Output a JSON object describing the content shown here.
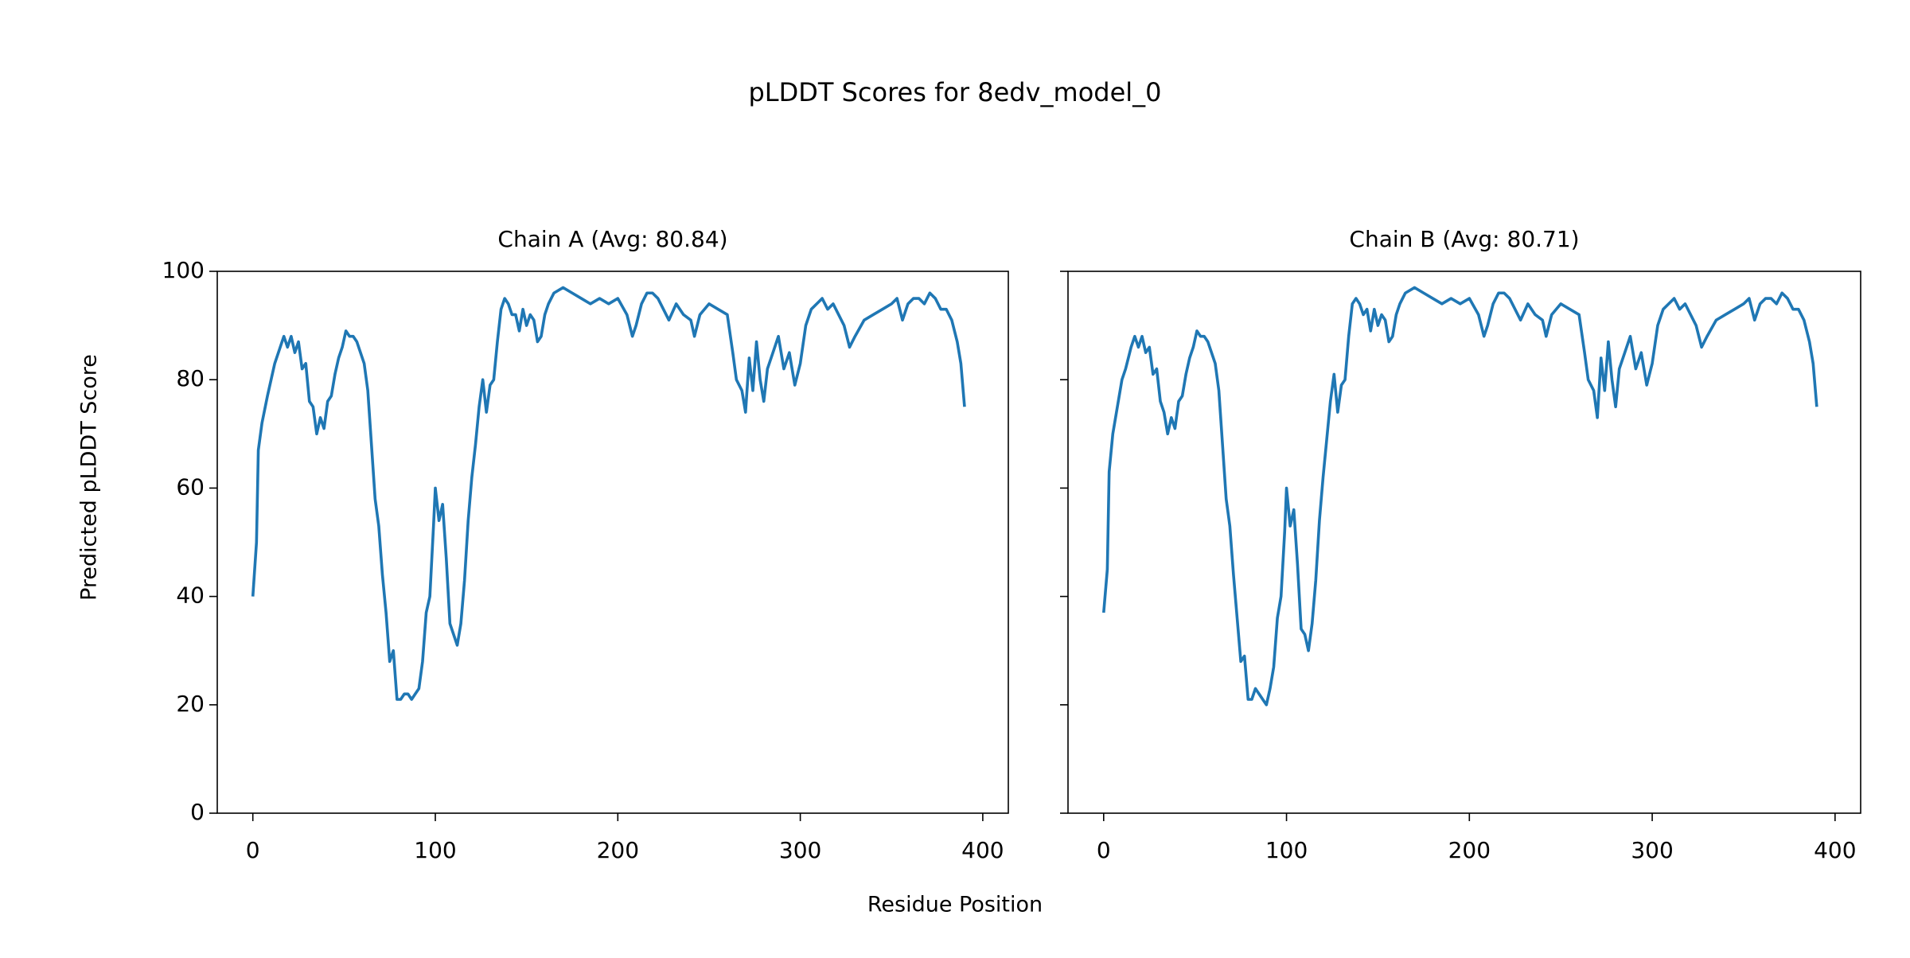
{
  "figure": {
    "title": "pLDDT Scores for 8edv_model_0",
    "x_label": "Residue Position",
    "y_label": "Predicted pLDDT Score"
  },
  "chart_data": [
    {
      "type": "line",
      "title": "Chain A (Avg: 80.84)",
      "color": "#1f77b4",
      "xlim": [
        -19.5,
        414
      ],
      "xticks": [
        0,
        100,
        200,
        300,
        400
      ],
      "ylim": [
        0,
        100
      ],
      "yticks": [
        0,
        20,
        40,
        60,
        80,
        100
      ],
      "show_ytick_labels": true,
      "x": [
        0,
        2,
        3,
        5,
        8,
        10,
        12,
        15,
        17,
        19,
        21,
        23,
        25,
        27,
        29,
        31,
        33,
        35,
        37,
        39,
        41,
        43,
        45,
        47,
        49,
        51,
        53,
        55,
        57,
        59,
        61,
        63,
        65,
        67,
        69,
        71,
        73,
        75,
        77,
        79,
        81,
        83,
        85,
        87,
        89,
        91,
        93,
        95,
        97,
        99,
        100,
        102,
        104,
        106,
        108,
        110,
        112,
        114,
        116,
        118,
        120,
        122,
        124,
        126,
        128,
        130,
        132,
        134,
        136,
        138,
        140,
        142,
        144,
        146,
        148,
        150,
        152,
        154,
        156,
        158,
        160,
        162,
        165,
        170,
        175,
        180,
        185,
        190,
        195,
        200,
        205,
        208,
        210,
        213,
        216,
        219,
        222,
        225,
        228,
        232,
        236,
        240,
        242,
        245,
        250,
        255,
        260,
        263,
        265,
        268,
        270,
        272,
        274,
        276,
        278,
        280,
        282,
        285,
        288,
        291,
        294,
        297,
        300,
        303,
        306,
        309,
        312,
        315,
        318,
        321,
        324,
        327,
        330,
        335,
        340,
        345,
        350,
        353,
        356,
        359,
        362,
        365,
        368,
        371,
        374,
        377,
        380,
        383,
        386,
        388,
        390
      ],
      "values": [
        40,
        50,
        67,
        72,
        77,
        80,
        83,
        86,
        88,
        86,
        88,
        85,
        87,
        82,
        83,
        76,
        75,
        70,
        73,
        71,
        76,
        77,
        81,
        84,
        86,
        89,
        88,
        88,
        87,
        85,
        83,
        78,
        68,
        58,
        53,
        44,
        37,
        28,
        30,
        21,
        21,
        22,
        22,
        21,
        22,
        23,
        28,
        37,
        40,
        53,
        60,
        54,
        57,
        47,
        35,
        33,
        31,
        35,
        43,
        54,
        62,
        68,
        75,
        80,
        74,
        79,
        80,
        87,
        93,
        95,
        94,
        92,
        92,
        89,
        93,
        90,
        92,
        91,
        87,
        88,
        92,
        94,
        96,
        97,
        96,
        95,
        94,
        95,
        94,
        95,
        92,
        88,
        90,
        94,
        96,
        96,
        95,
        93,
        91,
        94,
        92,
        91,
        88,
        92,
        94,
        93,
        92,
        85,
        80,
        78,
        74,
        84,
        78,
        87,
        80,
        76,
        82,
        85,
        88,
        82,
        85,
        79,
        83,
        90,
        93,
        94,
        95,
        93,
        94,
        92,
        90,
        86,
        88,
        91,
        92,
        93,
        94,
        95,
        91,
        94,
        95,
        95,
        94,
        96,
        95,
        93,
        93,
        91,
        87,
        83,
        75
      ]
    },
    {
      "type": "line",
      "title": "Chain B (Avg: 80.71)",
      "color": "#1f77b4",
      "xlim": [
        -19.5,
        414
      ],
      "xticks": [
        0,
        100,
        200,
        300,
        400
      ],
      "ylim": [
        0,
        100
      ],
      "yticks": [
        0,
        20,
        40,
        60,
        80,
        100
      ],
      "show_ytick_labels": false,
      "x": [
        0,
        2,
        3,
        5,
        8,
        10,
        12,
        15,
        17,
        19,
        21,
        23,
        25,
        27,
        29,
        31,
        33,
        35,
        37,
        39,
        41,
        43,
        45,
        47,
        49,
        51,
        53,
        55,
        57,
        59,
        61,
        63,
        65,
        67,
        69,
        71,
        73,
        75,
        77,
        79,
        81,
        83,
        85,
        87,
        89,
        91,
        93,
        95,
        97,
        99,
        100,
        102,
        104,
        106,
        108,
        110,
        112,
        114,
        116,
        118,
        120,
        122,
        124,
        126,
        128,
        130,
        132,
        134,
        136,
        138,
        140,
        142,
        144,
        146,
        148,
        150,
        152,
        154,
        156,
        158,
        160,
        162,
        165,
        170,
        175,
        180,
        185,
        190,
        195,
        200,
        205,
        208,
        210,
        213,
        216,
        219,
        222,
        225,
        228,
        232,
        236,
        240,
        242,
        245,
        250,
        255,
        260,
        263,
        265,
        268,
        270,
        272,
        274,
        276,
        278,
        280,
        282,
        285,
        288,
        291,
        294,
        297,
        300,
        303,
        306,
        309,
        312,
        315,
        318,
        321,
        324,
        327,
        330,
        335,
        340,
        345,
        350,
        353,
        356,
        359,
        362,
        365,
        368,
        371,
        374,
        377,
        380,
        383,
        386,
        388,
        390
      ],
      "values": [
        37,
        45,
        63,
        70,
        76,
        80,
        82,
        86,
        88,
        86,
        88,
        85,
        86,
        81,
        82,
        76,
        74,
        70,
        73,
        71,
        76,
        77,
        81,
        84,
        86,
        89,
        88,
        88,
        87,
        85,
        83,
        78,
        68,
        58,
        53,
        44,
        36,
        28,
        29,
        21,
        21,
        23,
        22,
        21,
        20,
        23,
        27,
        36,
        40,
        52,
        60,
        53,
        56,
        46,
        34,
        33,
        30,
        35,
        43,
        54,
        62,
        69,
        76,
        81,
        74,
        79,
        80,
        88,
        94,
        95,
        94,
        92,
        93,
        89,
        93,
        90,
        92,
        91,
        87,
        88,
        92,
        94,
        96,
        97,
        96,
        95,
        94,
        95,
        94,
        95,
        92,
        88,
        90,
        94,
        96,
        96,
        95,
        93,
        91,
        94,
        92,
        91,
        88,
        92,
        94,
        93,
        92,
        85,
        80,
        78,
        73,
        84,
        78,
        87,
        80,
        75,
        82,
        85,
        88,
        82,
        85,
        79,
        83,
        90,
        93,
        94,
        95,
        93,
        94,
        92,
        90,
        86,
        88,
        91,
        92,
        93,
        94,
        95,
        91,
        94,
        95,
        95,
        94,
        96,
        95,
        93,
        93,
        91,
        87,
        83,
        75
      ]
    }
  ]
}
